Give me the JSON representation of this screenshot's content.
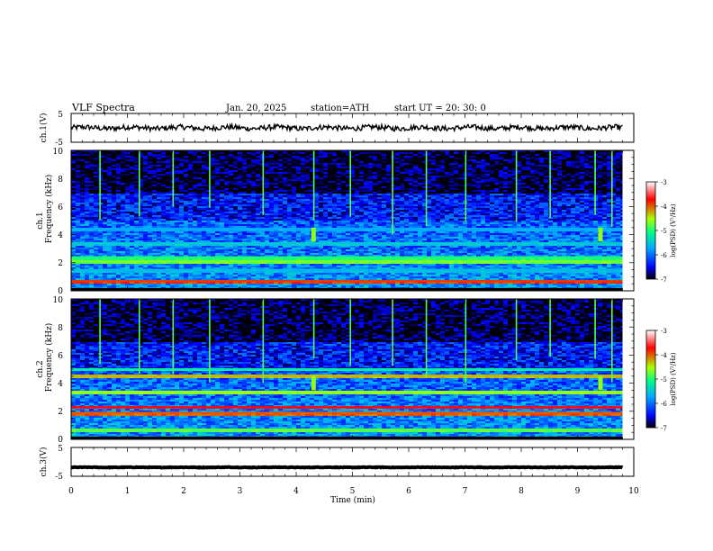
{
  "header": {
    "title": "VLF  Spectra",
    "date": "Jan. 20, 2025",
    "station": "station=ATH",
    "start": "start  UT  =   20: 30: 0"
  },
  "chart_data": [
    {
      "type": "line",
      "id": "ch1-waveform",
      "ylabel": "ch.1(V)",
      "ylim": [
        -5,
        5
      ],
      "y_ticks": [
        "5",
        "-5"
      ],
      "xlim": [
        0,
        10
      ],
      "data_xrange": [
        0,
        9.8
      ],
      "mean_level": 0,
      "amplitude_peak": 0.9,
      "style": "noisy black trace"
    },
    {
      "type": "heatmap",
      "id": "ch1-spectrogram",
      "ylabel_line1": "ch.1",
      "ylabel_line2": "Frequency (kHz)",
      "ylim": [
        0,
        10
      ],
      "y_ticks": [
        "0",
        "2",
        "4",
        "6",
        "8",
        "10"
      ],
      "xlim": [
        0,
        10
      ],
      "data_xrange": [
        0,
        9.8
      ],
      "colorbar": {
        "label": "log(PSD) (V²/Hz)",
        "range": [
          -7,
          -3
        ],
        "ticks": [
          "-3",
          "-4",
          "-5",
          "-6",
          "-7"
        ]
      },
      "bands_khz": [
        {
          "freq": 0.7,
          "level": -3.9
        },
        {
          "freq": 1.5,
          "level": -5.6
        },
        {
          "freq": 2.1,
          "level": -4.7
        },
        {
          "freq": 2.4,
          "level": -5.0
        },
        {
          "freq": 3.4,
          "level": -5.5
        },
        {
          "freq": 4.4,
          "level": -5.7
        }
      ],
      "spike_times_min": [
        0.5,
        1.2,
        1.8,
        2.45,
        3.4,
        4.3,
        4.95,
        5.7,
        6.3,
        7.0,
        7.9,
        8.5,
        9.3,
        9.6
      ],
      "burst_events": [
        {
          "time_min": 4.3,
          "freq_khz": 4.0
        },
        {
          "time_min": 9.4,
          "freq_khz": 4.0
        }
      ]
    },
    {
      "type": "heatmap",
      "id": "ch2-spectrogram",
      "ylabel_line1": "ch.2",
      "ylabel_line2": "Frequency (kHz)",
      "ylim": [
        0,
        10
      ],
      "y_ticks": [
        "0",
        "2",
        "4",
        "6",
        "8",
        "10"
      ],
      "xlim": [
        0,
        10
      ],
      "data_xrange": [
        0,
        9.8
      ],
      "colorbar": {
        "label": "log(PSD) (V²/Hz)",
        "range": [
          -7,
          -3
        ],
        "ticks": [
          "-3",
          "-4",
          "-5",
          "-6",
          "-7"
        ]
      },
      "bands_khz": [
        {
          "freq": 0.7,
          "level": -4.8
        },
        {
          "freq": 1.9,
          "level": -4.0
        },
        {
          "freq": 2.3,
          "level": -3.7
        },
        {
          "freq": 3.4,
          "level": -4.6
        },
        {
          "freq": 4.5,
          "level": -4.3
        },
        {
          "freq": 5.0,
          "level": -5.2
        }
      ],
      "spike_times_min": [
        0.5,
        1.2,
        1.8,
        2.45,
        3.4,
        4.3,
        4.95,
        5.7,
        6.3,
        7.0,
        7.9,
        8.5,
        9.3,
        9.6
      ],
      "burst_events": [
        {
          "time_min": 4.3,
          "freq_khz": 4.0
        },
        {
          "time_min": 9.4,
          "freq_khz": 4.0
        }
      ]
    },
    {
      "type": "line",
      "id": "ch3-waveform",
      "ylabel": "ch.3(V)",
      "ylim": [
        -5,
        5
      ],
      "y_ticks": [
        "5",
        "-5"
      ],
      "xlim": [
        0,
        10
      ],
      "x_ticks": [
        "0",
        "1",
        "2",
        "3",
        "4",
        "5",
        "6",
        "7",
        "8",
        "9",
        "10"
      ],
      "xlabel": "Time  (min)",
      "data_xrange": [
        0,
        9.8
      ],
      "mean_level": -1.9,
      "amplitude_peak": 0.1,
      "style": "flat thick black trace"
    }
  ],
  "colors": {
    "colormap": [
      "#000000",
      "#0000ff",
      "#00aaff",
      "#00ff88",
      "#aaff00",
      "#ff0000",
      "#ffffff"
    ]
  }
}
